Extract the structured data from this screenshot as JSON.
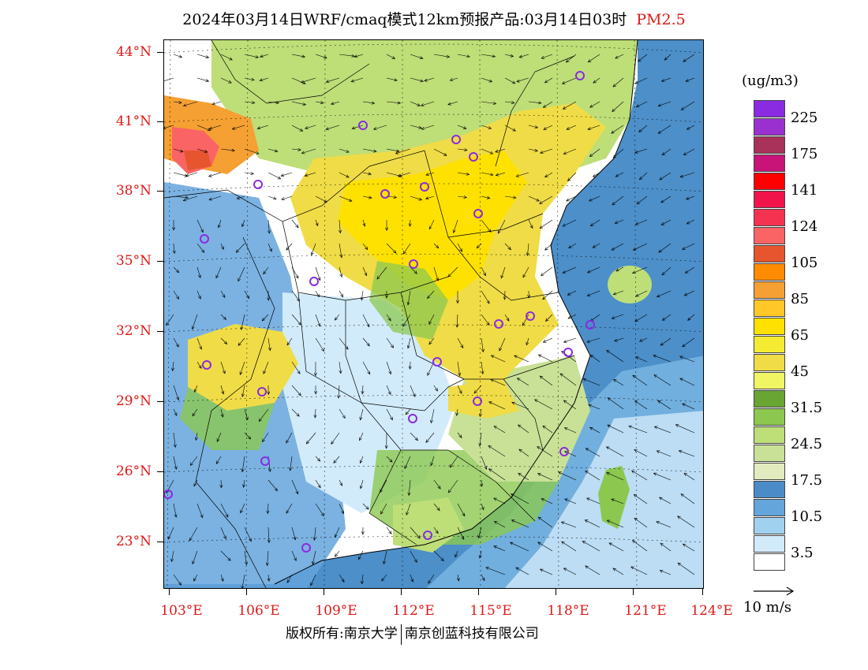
{
  "title": {
    "main": "2024年03月14日WRF/cmaq模式12km预报产品:03月14日03时",
    "pollutant": "PM2.5"
  },
  "map": {
    "lat_labels": [
      "44°N",
      "41°N",
      "38°N",
      "35°N",
      "32°N",
      "29°N",
      "26°N",
      "23°N"
    ],
    "lon_labels": [
      "103°E",
      "106°E",
      "109°E",
      "112°E",
      "115°E",
      "118°E",
      "121°E",
      "124°E"
    ],
    "colors": {
      "sea_blue": "#4c8fc9",
      "land_white": "#ffffff",
      "border": "#000000"
    }
  },
  "legend": {
    "unit": "(ug/m3)",
    "bins": [
      {
        "color": "#8a2be2",
        "label": "225"
      },
      {
        "color": "#9b30d0",
        "label": ""
      },
      {
        "color": "#a8325a",
        "label": "175"
      },
      {
        "color": "#c81478",
        "label": ""
      },
      {
        "color": "#ff0000",
        "label": "141"
      },
      {
        "color": "#f0144b",
        "label": ""
      },
      {
        "color": "#f53250",
        "label": "124"
      },
      {
        "color": "#fa6464",
        "label": ""
      },
      {
        "color": "#e6552d",
        "label": "105"
      },
      {
        "color": "#ff8c00",
        "label": ""
      },
      {
        "color": "#f5a032",
        "label": "85"
      },
      {
        "color": "#ffc828",
        "label": ""
      },
      {
        "color": "#ffe100",
        "label": "65"
      },
      {
        "color": "#f5eb32",
        "label": ""
      },
      {
        "color": "#f0dc46",
        "label": "45"
      },
      {
        "color": "#f0f564",
        "label": ""
      },
      {
        "color": "#69a532",
        "label": "31.5"
      },
      {
        "color": "#8cc850",
        "label": ""
      },
      {
        "color": "#bede78",
        "label": "24.5"
      },
      {
        "color": "#c8e196",
        "label": ""
      },
      {
        "color": "#e1ebbe",
        "label": "17.5"
      },
      {
        "color": "#4b8cc8",
        "label": ""
      },
      {
        "color": "#64a5dc",
        "label": "10.5"
      },
      {
        "color": "#a0d2f0",
        "label": ""
      },
      {
        "color": "#d2ebfa",
        "label": "3.5"
      },
      {
        "color": "#ffffff",
        "label": ""
      }
    ],
    "wind_reference": "10 m/s"
  },
  "footer": {
    "rights": "版权所有:南京大学",
    "company": "南京创蓝科技有限公司"
  }
}
